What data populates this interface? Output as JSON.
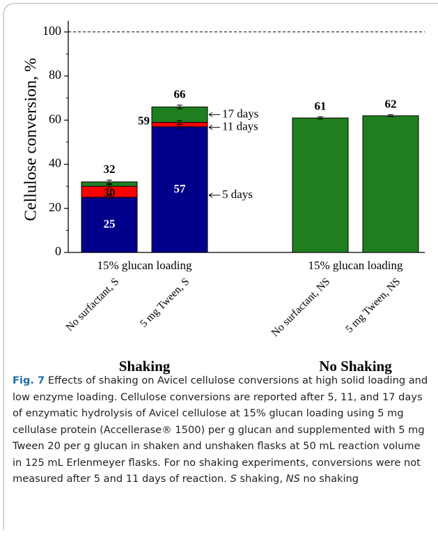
{
  "chart_data": {
    "type": "bar",
    "y_label": "Cellulose conversion, %",
    "categories": [
      "No surfactant, S",
      "5 mg Tween, S",
      "No surfactant, NS",
      "5 mg Tween, NS"
    ],
    "groups": [
      "15% glucan loading",
      "15% glucan loading"
    ],
    "panels": [
      "Shaking",
      "No Shaking"
    ],
    "series": [
      {
        "name": "5 days",
        "color": "#00008b",
        "values": [
          25,
          57,
          null,
          null
        ],
        "errors": [
          1,
          1,
          null,
          null
        ]
      },
      {
        "name": "11 days",
        "color": "#ff0000",
        "values": [
          30,
          59,
          null,
          null
        ],
        "errors": [
          0.8,
          0.8,
          null,
          null
        ]
      },
      {
        "name": "17 days",
        "color": "#1f7f1f",
        "values": [
          32,
          66,
          61,
          62
        ],
        "errors": [
          0.8,
          0.8,
          0.5,
          0.5
        ]
      }
    ],
    "reference_line": 100,
    "ylim": [
      0,
      105
    ],
    "yticks": [
      0,
      20,
      40,
      60,
      80,
      100
    ]
  },
  "caption": {
    "label": "Fig. 7",
    "text": " Effects of shaking on Avicel cellulose conversions at high solid loading and low enzyme loading. Cellulose conversions are reported after 5, 11, and 17 days of enzymatic hydrolysis of Avicel cellulose at 15% glucan loading using 5 mg cellulase protein (Accellerase® 1500) per g glucan and supplemented with 5 mg Tween 20 per g glucan in shaken and unshaken flasks at 50 mL reaction volume in 125 mL Erlenmeyer flasks. For no shaking experiments, conversions were not measured after 5 and 11 days of reaction. ",
    "s_abbr": "S",
    "s_text": " shaking, ",
    "ns_abbr": "NS",
    "ns_text": " no shaking"
  }
}
